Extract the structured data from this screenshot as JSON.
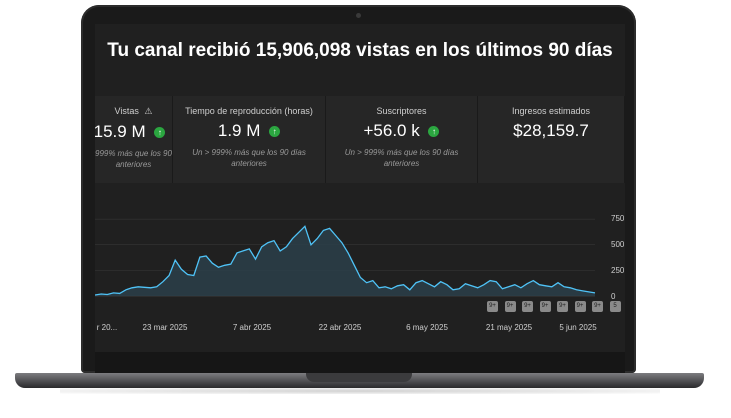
{
  "headline": "Tu canal recibió 15,906,098 vistas en los últimos 90 días",
  "cards": [
    {
      "label": "Vistas",
      "value": "15.9 M",
      "note1": "999% más que los 90 días",
      "note2": "anteriores",
      "warning_icon": "warning-icon",
      "trend": "up"
    },
    {
      "label": "Tiempo de reproducción (horas)",
      "value": "1.9 M",
      "note1": "Un > 999% más que los 90 días",
      "note2": "anteriores",
      "trend": "up"
    },
    {
      "label": "Suscriptores",
      "value": "+56.0 k",
      "note1": "Un > 999% más que los 90 días",
      "note2": "anteriores",
      "trend": "up"
    },
    {
      "label": "Ingresos estimados",
      "value": "$28,159.7"
    }
  ],
  "chart_data": {
    "type": "area",
    "x_tick_labels": [
      "r 20...",
      "23 mar 2025",
      "7 abr 2025",
      "22 abr 2025",
      "6 may 2025",
      "21 may 2025",
      "5 jun 2025"
    ],
    "y_tick_labels": [
      "750",
      "500",
      "250",
      "0"
    ],
    "ylim": [
      0,
      800
    ],
    "values": [
      10,
      20,
      15,
      30,
      25,
      60,
      80,
      90,
      85,
      80,
      90,
      140,
      200,
      350,
      260,
      210,
      200,
      380,
      390,
      320,
      280,
      300,
      310,
      420,
      440,
      460,
      360,
      480,
      520,
      540,
      440,
      480,
      560,
      620,
      680,
      500,
      560,
      640,
      660,
      590,
      520,
      420,
      300,
      180,
      130,
      150,
      80,
      90,
      70,
      100,
      110,
      60,
      130,
      150,
      120,
      90,
      140,
      110,
      60,
      70,
      120,
      100,
      80,
      110,
      150,
      140,
      70,
      90,
      110,
      80,
      120,
      150,
      110,
      100,
      90,
      130,
      90,
      80,
      60,
      50,
      40,
      30
    ],
    "line_color": "#4fc3f7",
    "fill_color": "#2b3f4a",
    "grid": true
  },
  "markers": [
    "9+",
    "9+",
    "9+",
    "9+",
    "9+",
    "9+",
    "9+",
    "5"
  ]
}
